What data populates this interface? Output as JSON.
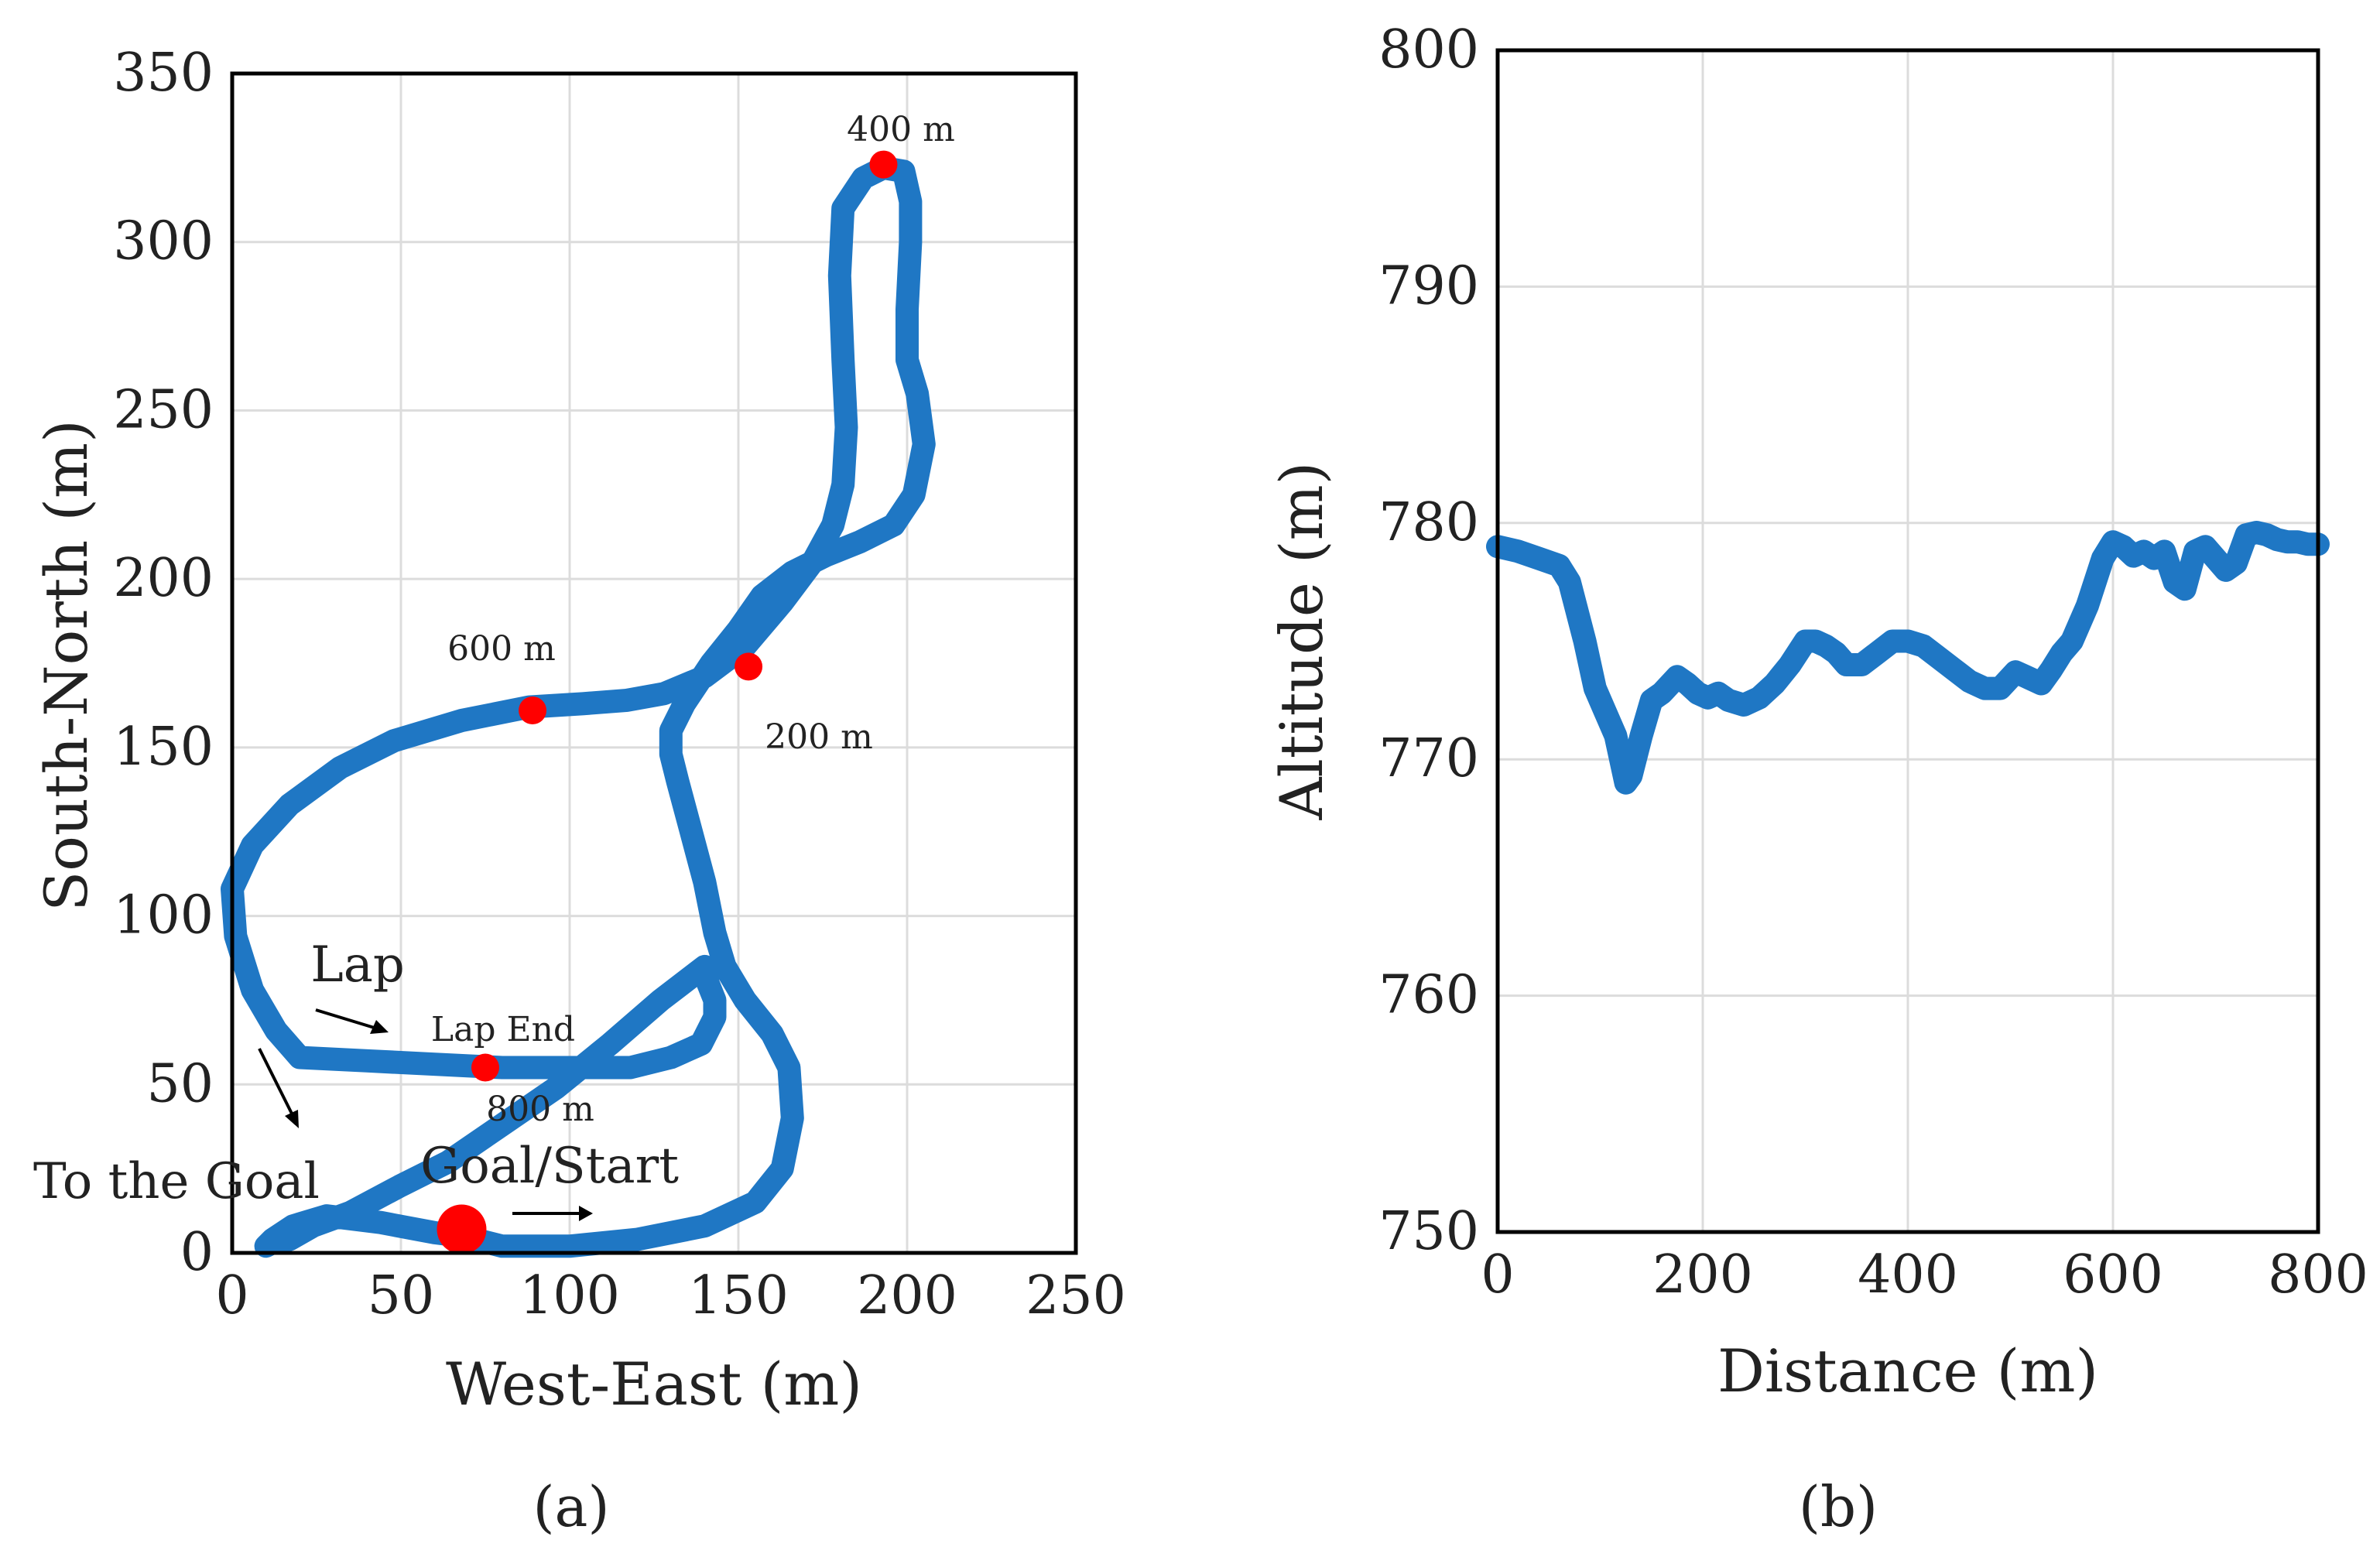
{
  "colors": {
    "trace": "#1f77c4",
    "marker": "#ff0000",
    "grid": "#dcdcdc",
    "axis": "#000000"
  },
  "chart_data": [
    {
      "type": "line",
      "panel_label": "(a)",
      "xlabel": "West-East (m)",
      "ylabel": "South-North (m)",
      "xlim": [
        0,
        250
      ],
      "ylim": [
        0,
        350
      ],
      "xticks": [
        0,
        50,
        100,
        150,
        200,
        250
      ],
      "yticks": [
        0,
        50,
        100,
        150,
        200,
        250,
        300,
        350
      ],
      "xtick_labels": [
        "0",
        "50",
        "100",
        "150",
        "200",
        "250"
      ],
      "ytick_labels": [
        "0",
        "50",
        "100",
        "150",
        "200",
        "250",
        "300",
        "350"
      ],
      "grid": true,
      "series": [
        {
          "x": [
            68,
            80,
            100,
            120,
            140,
            155,
            163,
            166,
            165,
            160,
            152,
            146,
            143,
            140,
            136,
            132,
            130,
            130,
            134,
            142,
            150,
            157,
            166,
            176,
            186,
            196,
            202,
            205,
            203,
            200,
            200,
            201,
            201,
            199,
            193,
            187,
            181,
            180,
            181,
            182,
            181,
            178,
            172,
            163,
            152,
            140,
            128,
            117,
            104,
            88,
            68,
            48,
            32,
            17,
            6,
            0,
            1,
            6,
            13,
            20,
            40,
            60,
            80,
            100,
            118,
            130,
            139,
            143,
            143,
            141,
            140,
            127,
            112,
            96,
            80,
            64,
            50,
            35,
            24,
            17,
            12,
            10,
            12,
            18,
            28,
            44,
            60,
            68
          ],
          "y": [
            5,
            2,
            2,
            4,
            8,
            15,
            25,
            40,
            55,
            65,
            75,
            85,
            95,
            110,
            125,
            140,
            148,
            155,
            163,
            175,
            185,
            195,
            202,
            207,
            211,
            216,
            225,
            240,
            255,
            265,
            280,
            300,
            312,
            321,
            322,
            319,
            310,
            290,
            265,
            245,
            228,
            216,
            205,
            193,
            180,
            171,
            166,
            164,
            163,
            162,
            158,
            152,
            144,
            133,
            121,
            108,
            94,
            78,
            66,
            58,
            57,
            56,
            55,
            55,
            55,
            58,
            62,
            70,
            75,
            80,
            85,
            75,
            62,
            49,
            38,
            27,
            20,
            12,
            8,
            4,
            3,
            2,
            4,
            8,
            11,
            9,
            6,
            5
          ]
        }
      ],
      "markers": [
        {
          "name": "Goal/Start",
          "x": 68,
          "y": 7
        },
        {
          "name": "200 m",
          "x": 153,
          "y": 174
        },
        {
          "name": "400 m",
          "x": 193,
          "y": 323
        },
        {
          "name": "600 m",
          "x": 89,
          "y": 161
        },
        {
          "name": "Lap End",
          "x": 75,
          "y": 55
        }
      ],
      "annotations": [
        "400 m",
        "600 m",
        "200 m",
        "Lap",
        "Lap End",
        "800 m",
        "To the Goal",
        "Goal/Start"
      ]
    },
    {
      "type": "line",
      "panel_label": "(b)",
      "xlabel": "Distance (m)",
      "ylabel": "Altitude (m)",
      "xlim": [
        0,
        800
      ],
      "ylim": [
        750,
        800
      ],
      "xticks": [
        0,
        200,
        400,
        600,
        800
      ],
      "yticks": [
        750,
        760,
        770,
        780,
        790,
        800
      ],
      "xtick_labels": [
        "0",
        "200",
        "400",
        "600",
        "800"
      ],
      "ytick_labels": [
        "750",
        "760",
        "770",
        "780",
        "790",
        "800"
      ],
      "grid": true,
      "series": [
        {
          "x": [
            0,
            20,
            40,
            60,
            70,
            85,
            95,
            105,
            115,
            125,
            130,
            140,
            150,
            160,
            175,
            185,
            195,
            205,
            215,
            225,
            240,
            255,
            270,
            285,
            300,
            310,
            320,
            330,
            340,
            355,
            370,
            385,
            400,
            415,
            430,
            445,
            460,
            475,
            490,
            505,
            515,
            525,
            530,
            540,
            550,
            560,
            575,
            590,
            600,
            610,
            620,
            630,
            640,
            650,
            660,
            670,
            675,
            680,
            690,
            700,
            710,
            720,
            730,
            740,
            750,
            760,
            770,
            780,
            790,
            800
          ],
          "y": [
            779,
            778.8,
            778.5,
            778.2,
            777.5,
            775,
            773,
            772,
            771,
            769,
            769.3,
            771,
            772.5,
            772.8,
            773.5,
            773.2,
            772.8,
            772.6,
            772.8,
            772.5,
            772.3,
            772.6,
            773.2,
            774,
            775,
            775,
            774.8,
            774.5,
            774,
            774,
            774.5,
            775,
            775,
            774.8,
            774.3,
            773.8,
            773.3,
            773,
            773,
            773.7,
            773.5,
            773.3,
            773.2,
            773.8,
            774.5,
            775,
            776.5,
            778.5,
            779.2,
            779,
            778.6,
            778.8,
            778.5,
            778.8,
            777.5,
            777.2,
            778,
            778.8,
            779,
            778.5,
            778,
            778.3,
            779.5,
            779.6,
            779.5,
            779.3,
            779.2,
            779.2,
            779.1,
            779.1
          ]
        }
      ]
    }
  ]
}
